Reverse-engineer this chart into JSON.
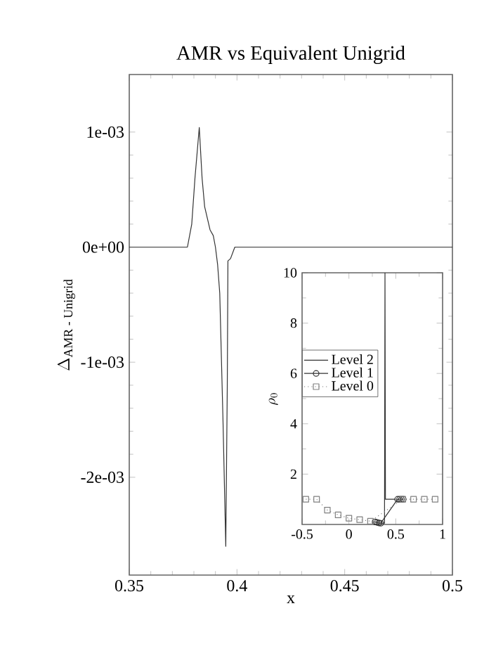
{
  "chart_data": [
    {
      "type": "line",
      "title": "AMR vs Equivalent Unigrid",
      "xlabel": "x",
      "ylabel": "\\Delta_{\\mbox{\\small AMR - Unigrid}}",
      "xlim": [
        0.35,
        0.5
      ],
      "xticks": [
        0.35,
        0.4,
        0.45,
        0.5
      ],
      "ylim": [
        -0.00285,
        0.0015
      ],
      "yticks": [
        {
          "value": -0.002,
          "label": "-2e-03"
        },
        {
          "value": -0.001,
          "label": "-1e-03"
        },
        {
          "value": 0,
          "label": "0e+00"
        },
        {
          "value": 0.001,
          "label": "1e-03"
        }
      ],
      "series": [
        {
          "color": "#333333",
          "x": [
            0.35,
            0.37,
            0.375,
            0.377,
            0.379,
            0.3805,
            0.3825,
            0.3838,
            0.385,
            0.3875,
            0.389,
            0.39,
            0.391,
            0.392,
            0.3935,
            0.3948,
            0.3955,
            0.3958,
            0.397,
            0.399,
            0.4005,
            0.5
          ],
          "values": [
            0,
            0,
            0,
            0,
            0.0002,
            0.0006,
            0.00104,
            0.0006,
            0.00035,
            0.00015,
            0.0001,
            0,
            -0.00015,
            -0.0004,
            -0.0015,
            -0.0026,
            -0.0012,
            -0.00012,
            -0.0001,
            0,
            0,
            0
          ]
        }
      ]
    },
    {
      "type": "line",
      "ylabel": "\\rho_{0}",
      "legend": "left",
      "xlim": [
        -0.5,
        1
      ],
      "xticks": [
        -0.5,
        0,
        0.5,
        1
      ],
      "ylim": [
        0,
        10
      ],
      "yticks": [
        2,
        4,
        6,
        8,
        10
      ],
      "series": [
        {
          "name": "Level 2",
          "color": "#333333",
          "marker": "none",
          "line_style": "solid",
          "x": [
            0.34,
            0.38,
            0.385,
            0.39,
            0.5
          ],
          "values": [
            0.05,
            0.05,
            10,
            1,
            1
          ]
        },
        {
          "name": "Level 1",
          "color": "#333333",
          "marker": "circle",
          "line_style": "solid",
          "x": [
            0.28,
            0.3,
            0.32,
            0.34,
            0.52,
            0.54,
            0.56,
            0.58
          ],
          "values": [
            0.1,
            0.08,
            0.06,
            0.05,
            1,
            1,
            1,
            1
          ]
        },
        {
          "name": "Level 0",
          "color": "#808080",
          "marker": "square",
          "line_style": "dotted",
          "x": [
            -0.46,
            -0.345,
            -0.23,
            -0.115,
            0.0,
            0.115,
            0.23,
            0.575,
            0.69,
            0.805,
            0.92
          ],
          "values": [
            1,
            1,
            0.57,
            0.38,
            0.25,
            0.19,
            0.13,
            1,
            1,
            1,
            1
          ]
        }
      ]
    }
  ]
}
